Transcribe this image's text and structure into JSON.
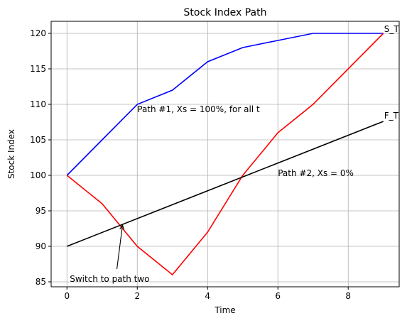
{
  "chart_data": {
    "type": "line",
    "title": "Stock Index Path",
    "xlabel": "Time",
    "ylabel": "Stock Index",
    "xlim": [
      -0.45,
      9.45
    ],
    "ylim": [
      84.3,
      121.7
    ],
    "xticks": [
      0,
      2,
      4,
      6,
      8
    ],
    "yticks": [
      85,
      90,
      95,
      100,
      105,
      110,
      115,
      120
    ],
    "grid": true,
    "series": [
      {
        "color": "#0000ff",
        "x": [
          0,
          1,
          2,
          3,
          4,
          5,
          6,
          7,
          8,
          9
        ],
        "y": [
          100,
          105,
          110,
          112,
          116,
          118,
          119,
          120,
          120,
          120
        ]
      },
      {
        "color": "#ff0000",
        "x": [
          0,
          1,
          2,
          3,
          4,
          5,
          6,
          7,
          8,
          9
        ],
        "y": [
          100,
          96,
          90,
          86,
          92,
          100,
          106,
          110,
          115,
          120
        ]
      },
      {
        "color": "#000000",
        "x": [
          0,
          9
        ],
        "y": [
          90,
          107.6
        ]
      }
    ],
    "annotations": [
      {
        "text": "S_T",
        "x": 9.02,
        "y": 120.2
      },
      {
        "text": "F_T",
        "x": 9.02,
        "y": 108.0
      },
      {
        "text": "Path #1, Xs = 100%, for all t",
        "x": 2.0,
        "y": 108.9
      },
      {
        "text": "Path #2, Xs = 0%",
        "x": 6.0,
        "y": 99.9
      },
      {
        "text": "Switch to path two",
        "x": 0.08,
        "y": 85.0,
        "arrow_to": [
          1.58,
          93.0
        ],
        "arrow_from": [
          1.42,
          86.8
        ]
      }
    ]
  }
}
